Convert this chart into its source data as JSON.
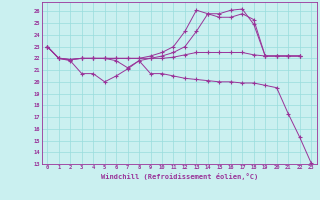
{
  "xlabel": "Windchill (Refroidissement éolien,°C)",
  "background_color": "#caf0f0",
  "line_color": "#993399",
  "grid_color": "#99dddd",
  "xlim": [
    -0.5,
    23.5
  ],
  "ylim": [
    13,
    26.8
  ],
  "yticks": [
    13,
    14,
    15,
    16,
    17,
    18,
    19,
    20,
    21,
    22,
    23,
    24,
    25,
    26
  ],
  "xticks": [
    0,
    1,
    2,
    3,
    4,
    5,
    6,
    7,
    8,
    9,
    10,
    11,
    12,
    13,
    14,
    15,
    16,
    17,
    18,
    19,
    20,
    21,
    22,
    23
  ],
  "series": [
    [
      23.0,
      22.0,
      21.8,
      20.7,
      20.7,
      20.0,
      20.5,
      21.1,
      21.8,
      20.7,
      20.7,
      20.5,
      20.3,
      20.2,
      20.1,
      20.0,
      20.0,
      19.9,
      19.9,
      19.7,
      19.5,
      17.3,
      15.3,
      13.1
    ],
    [
      23.0,
      22.0,
      21.9,
      22.0,
      22.0,
      22.0,
      22.0,
      22.0,
      22.0,
      22.2,
      22.5,
      23.0,
      24.3,
      26.1,
      25.8,
      25.8,
      26.1,
      26.2,
      24.9,
      22.2,
      22.2,
      22.2,
      22.2,
      null
    ],
    [
      23.0,
      22.0,
      21.9,
      22.0,
      22.0,
      22.0,
      22.0,
      22.0,
      22.0,
      22.0,
      22.0,
      22.1,
      22.3,
      22.5,
      22.5,
      22.5,
      22.5,
      22.5,
      22.3,
      22.2,
      22.2,
      22.2,
      22.2,
      null
    ],
    [
      23.0,
      22.0,
      21.9,
      22.0,
      22.0,
      22.0,
      21.8,
      21.2,
      21.8,
      22.0,
      22.2,
      22.5,
      23.0,
      24.3,
      25.8,
      25.5,
      25.5,
      25.8,
      25.3,
      22.2,
      22.2,
      22.2,
      22.2,
      null
    ]
  ]
}
